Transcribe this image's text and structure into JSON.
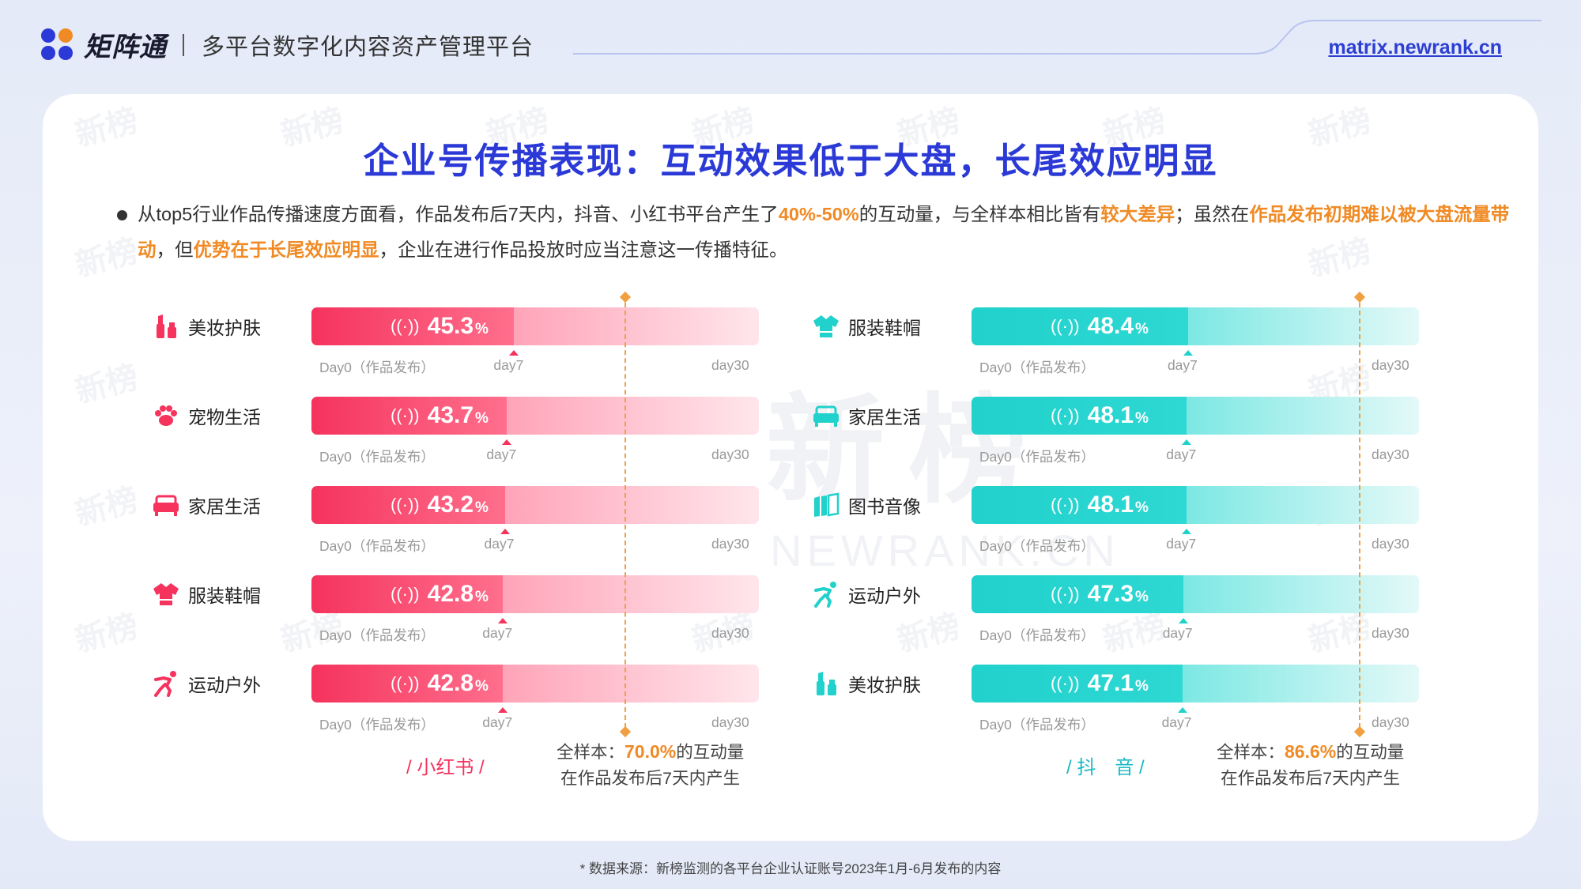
{
  "header": {
    "brand_name": "矩阵通",
    "subtitle": "多平台数字化内容资产管理平台",
    "site": "matrix.newrank.cn"
  },
  "watermark": {
    "text": "新榜",
    "big_text": "新榜",
    "big_sub": "NEWRANK.CN"
  },
  "title": "企业号传播表现：互动效果低于大盘，长尾效应明显",
  "description": {
    "p1": "从top5行业作品传播速度方面看，作品发布后7天内，抖音、小红书平台产生了",
    "h1": "40%-50%",
    "p2": "的互动量，与全样本相比皆有",
    "h2": "较大差异",
    "p3": "；虽然在",
    "h3": "作品发布初期难以被大盘流量带动",
    "p4": "，但",
    "h4": "优势在于长尾效应明显",
    "p5": "，企业在进行作品投放时应当注意这一传播特征。"
  },
  "labels": {
    "day0": "Day0（作品发布）",
    "day7": "day7",
    "day30": "day30",
    "pct": "%",
    "signal": "((·))"
  },
  "colors": {
    "xhs": "#f5335d",
    "dy": "#21d1cc",
    "accent": "#f08a24",
    "title": "#2b3ad6"
  },
  "chart_data": [
    {
      "type": "bar",
      "platform": "/ 小红书 /",
      "categories": [
        "美妆护肤",
        "宠物生活",
        "家居生活",
        "服装鞋帽",
        "运动户外"
      ],
      "icons": [
        "lipstick-icon",
        "paw-icon",
        "sofa-icon",
        "shirt-icon",
        "runner-icon"
      ],
      "values": [
        45.3,
        43.7,
        43.2,
        42.8,
        42.8
      ],
      "value_labels": [
        "45.3",
        "43.7",
        "43.2",
        "42.8",
        "42.8"
      ],
      "unit": "%",
      "benchmark": {
        "value": 70.0,
        "line1_pre": "全样本：",
        "line1_val": "70.0%",
        "line1_post": "的互动量",
        "line2": "在作品发布后7天内产生"
      }
    },
    {
      "type": "bar",
      "platform": "/ 抖　音 /",
      "categories": [
        "服装鞋帽",
        "家居生活",
        "图书音像",
        "运动户外",
        "美妆护肤"
      ],
      "icons": [
        "shirt-icon",
        "sofa-icon",
        "books-icon",
        "runner-icon",
        "lipstick-icon"
      ],
      "values": [
        48.4,
        48.1,
        48.1,
        47.3,
        47.1
      ],
      "value_labels": [
        "48.4",
        "48.1",
        "48.1",
        "47.3",
        "47.1"
      ],
      "unit": "%",
      "benchmark": {
        "value": 86.6,
        "line1_pre": "全样本：",
        "line1_val": "86.6%",
        "line1_post": "的互动量",
        "line2": "在作品发布后7天内产生"
      }
    }
  ],
  "footer": "* 数据来源：新榜监测的各平台企业认证账号2023年1月-6月发布的内容"
}
